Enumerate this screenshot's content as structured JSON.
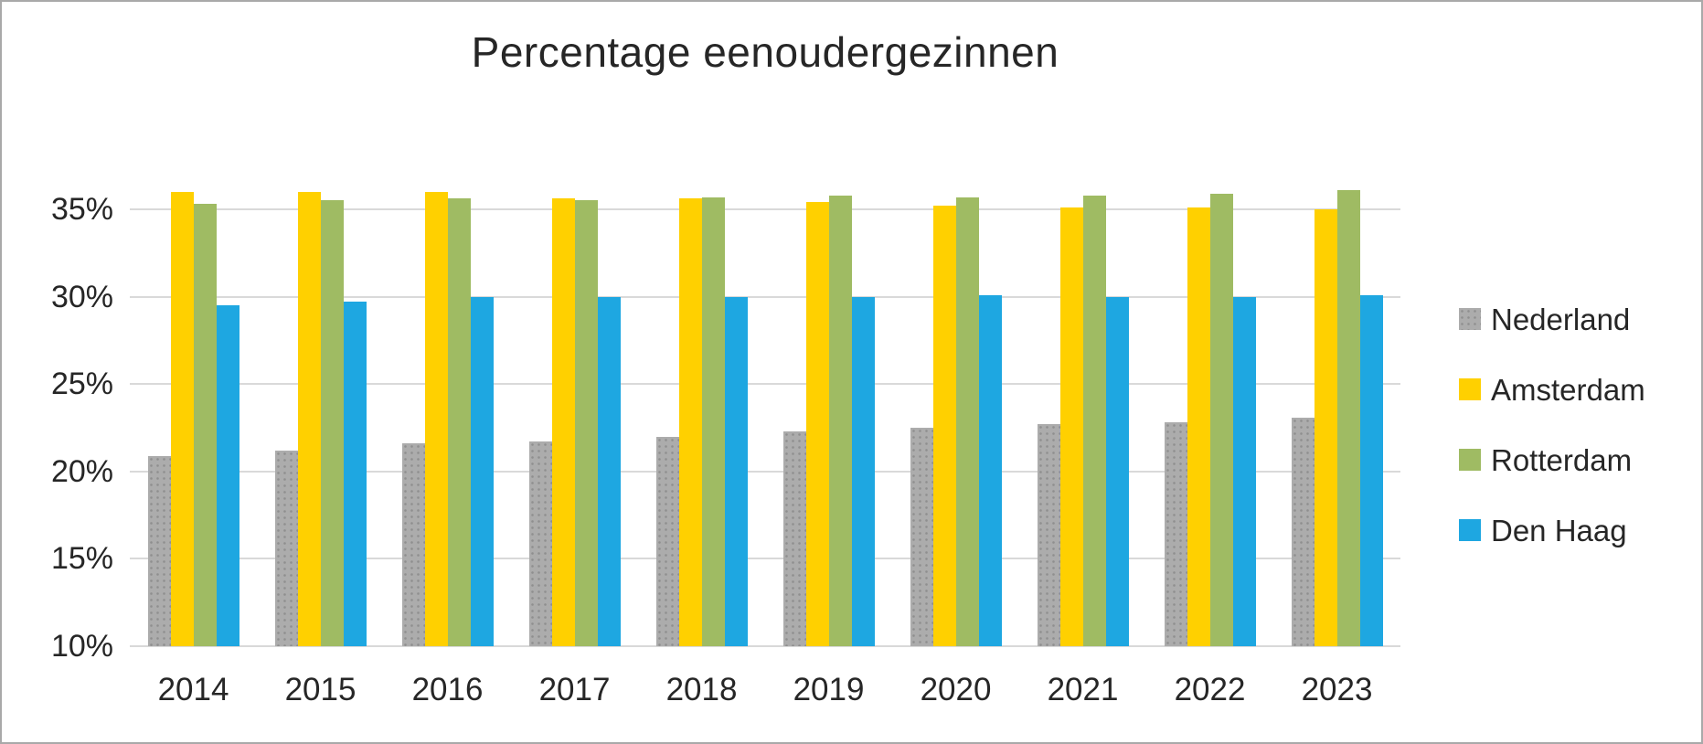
{
  "window": {
    "background_color": "#FFFFFF",
    "frame_border_color": "#A9A9A9",
    "text_color": "#262626"
  },
  "chart_data": {
    "type": "bar",
    "title": "Percentage eenoudergezinnen",
    "xlabel": "",
    "ylabel": "",
    "categories": [
      "2014",
      "2015",
      "2016",
      "2017",
      "2018",
      "2019",
      "2020",
      "2021",
      "2022",
      "2023"
    ],
    "series": [
      {
        "name": "Nederland",
        "color": "#ACACAC",
        "pattern": "dots",
        "values": [
          20.9,
          21.2,
          21.6,
          21.7,
          22.0,
          22.3,
          22.5,
          22.7,
          22.8,
          23.1
        ]
      },
      {
        "name": "Amsterdam",
        "color": "#FFD000",
        "pattern": "solid",
        "values": [
          36.0,
          36.0,
          36.0,
          35.6,
          35.6,
          35.4,
          35.2,
          35.1,
          35.1,
          35.0
        ]
      },
      {
        "name": "Rotterdam",
        "color": "#9FBB63",
        "pattern": "solid",
        "values": [
          35.3,
          35.5,
          35.6,
          35.5,
          35.7,
          35.8,
          35.7,
          35.8,
          35.9,
          36.1
        ]
      },
      {
        "name": "Den Haag",
        "color": "#1EA7E1",
        "pattern": "solid",
        "values": [
          29.5,
          29.7,
          30.0,
          30.0,
          30.0,
          30.0,
          30.1,
          30.0,
          30.0,
          30.1
        ]
      }
    ],
    "y_ticks": [
      {
        "value": 10,
        "label": "10%"
      },
      {
        "value": 15,
        "label": "15%"
      },
      {
        "value": 20,
        "label": "20%"
      },
      {
        "value": 25,
        "label": "25%"
      },
      {
        "value": 30,
        "label": "30%"
      },
      {
        "value": 35,
        "label": "35%"
      }
    ],
    "ylim": [
      10,
      38.5
    ],
    "grid": true,
    "gridline_color": "#D9D9D9",
    "legend_position": "right"
  }
}
